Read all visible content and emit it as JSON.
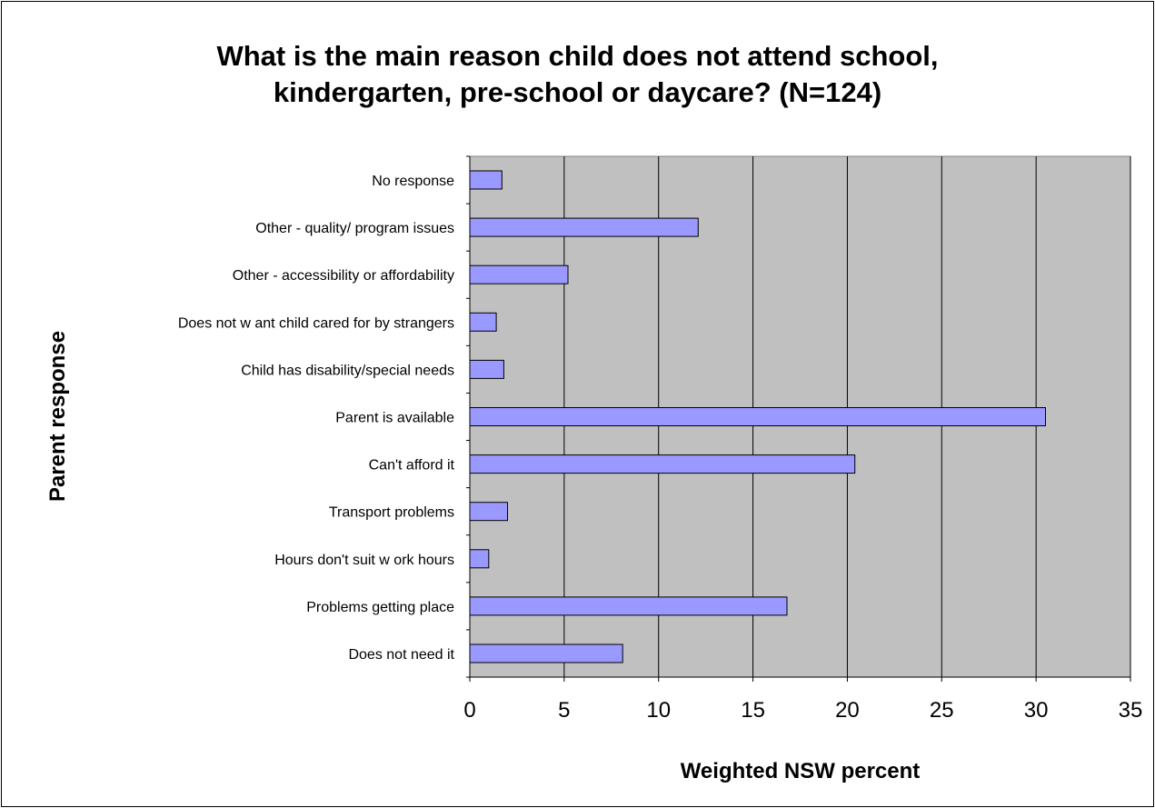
{
  "chart_data": {
    "type": "bar",
    "orientation": "horizontal",
    "title_lines": [
      "What is the main reason child does not attend school,",
      "kindergarten, pre-school or daycare? (N=124)"
    ],
    "xlabel": "Weighted NSW percent",
    "ylabel": "Parent response",
    "xlim": [
      0,
      35
    ],
    "x_ticks": [
      "0",
      "5",
      "10",
      "15",
      "20",
      "25",
      "30",
      "35"
    ],
    "grid": "vertical",
    "legend": "none",
    "categories": [
      "No response",
      "Other - quality/ program issues",
      "Other - accessibility or affordability",
      "Does not w ant child cared for by strangers",
      "Child has disability/special needs",
      "Parent is available",
      "Can't afford it",
      "Transport problems",
      "Hours don't suit w ork hours",
      "Problems getting place",
      "Does not need it"
    ],
    "values": [
      1.7,
      12.1,
      5.2,
      1.4,
      1.8,
      30.5,
      20.4,
      2.0,
      1.0,
      16.8,
      8.1
    ],
    "colors": {
      "bar_fill": "#9999ff",
      "bar_stroke": "#000000",
      "plot_background": "#c0c0c0",
      "gridline": "#000000"
    }
  }
}
